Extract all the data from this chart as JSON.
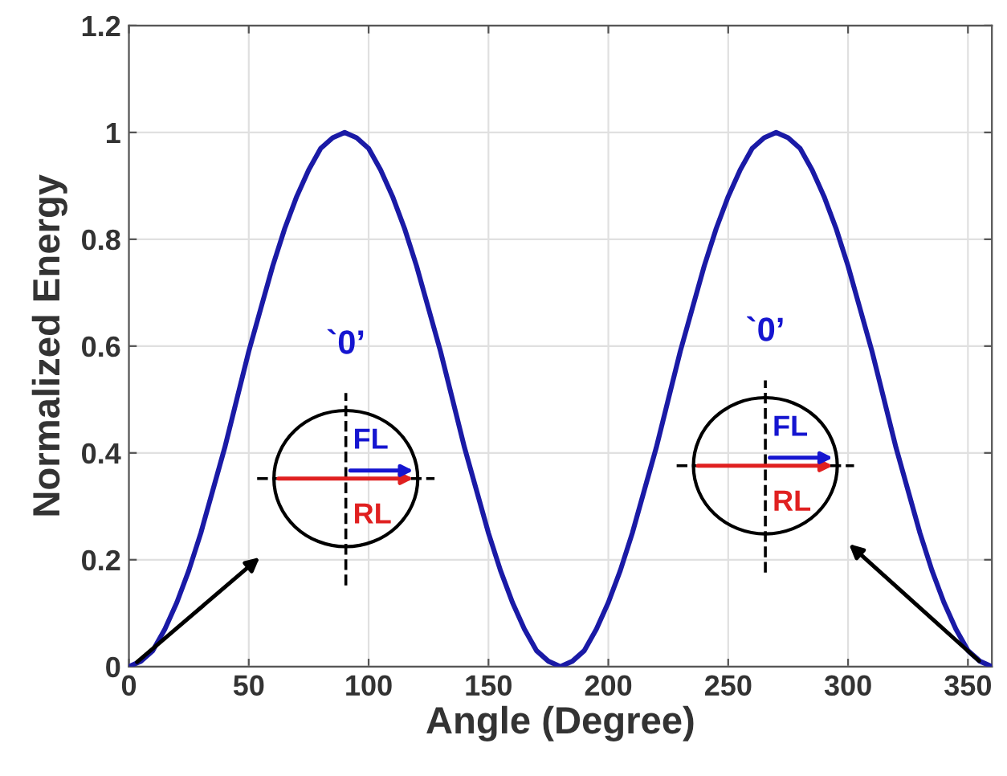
{
  "chart_data": {
    "type": "line",
    "xlabel": "Angle (Degree)",
    "ylabel": "Normalized Energy",
    "x": [
      0,
      5,
      10,
      15,
      20,
      25,
      30,
      35,
      40,
      45,
      50,
      55,
      60,
      65,
      70,
      75,
      80,
      85,
      90,
      95,
      100,
      105,
      110,
      115,
      120,
      125,
      130,
      135,
      140,
      145,
      150,
      155,
      160,
      165,
      170,
      175,
      180,
      185,
      190,
      195,
      200,
      205,
      210,
      215,
      220,
      225,
      230,
      235,
      240,
      245,
      250,
      255,
      260,
      265,
      270,
      275,
      280,
      285,
      290,
      295,
      300,
      305,
      310,
      315,
      320,
      325,
      330,
      335,
      340,
      345,
      350,
      355,
      360
    ],
    "series": [
      {
        "color": "#1a1aa6",
        "values": [
          0,
          0.01,
          0.03,
          0.07,
          0.12,
          0.18,
          0.25,
          0.33,
          0.41,
          0.5,
          0.59,
          0.67,
          0.75,
          0.82,
          0.88,
          0.93,
          0.97,
          0.99,
          1,
          0.99,
          0.97,
          0.93,
          0.88,
          0.82,
          0.75,
          0.67,
          0.59,
          0.5,
          0.41,
          0.33,
          0.25,
          0.18,
          0.12,
          0.07,
          0.03,
          0.01,
          0,
          0.01,
          0.03,
          0.07,
          0.12,
          0.18,
          0.25,
          0.33,
          0.41,
          0.5,
          0.59,
          0.67,
          0.75,
          0.82,
          0.88,
          0.93,
          0.97,
          0.99,
          1,
          0.99,
          0.97,
          0.93,
          0.88,
          0.82,
          0.75,
          0.67,
          0.59,
          0.5,
          0.41,
          0.33,
          0.25,
          0.18,
          0.12,
          0.07,
          0.03,
          0.01,
          0
        ]
      }
    ],
    "xlim": [
      0,
      360
    ],
    "xticks": [
      0,
      50,
      100,
      150,
      200,
      250,
      300,
      350
    ],
    "ylim": [
      0,
      1.2
    ],
    "yticks": [
      0,
      0.2,
      0.4,
      0.6,
      0.8,
      1,
      1.2
    ],
    "grid": true,
    "marker": "none",
    "line_style": "solid",
    "annotations": [
      "`0’",
      "FL",
      "RL",
      "`0’",
      "FL",
      "RL"
    ]
  }
}
